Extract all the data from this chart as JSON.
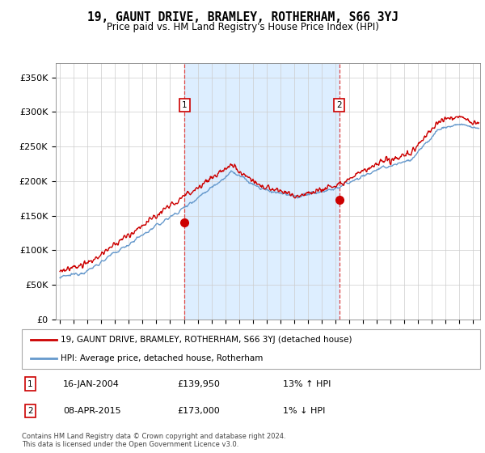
{
  "title": "19, GAUNT DRIVE, BRAMLEY, ROTHERHAM, S66 3YJ",
  "subtitle": "Price paid vs. HM Land Registry's House Price Index (HPI)",
  "ylabel_ticks": [
    "£0",
    "£50K",
    "£100K",
    "£150K",
    "£200K",
    "£250K",
    "£300K",
    "£350K"
  ],
  "ytick_values": [
    0,
    50000,
    100000,
    150000,
    200000,
    250000,
    300000,
    350000
  ],
  "ylim": [
    0,
    370000
  ],
  "xlim_start": 1994.7,
  "xlim_end": 2025.5,
  "marker1_x": 2004.04,
  "marker1_y": 139950,
  "marker2_x": 2015.27,
  "marker2_y": 173000,
  "hpi_color": "#6699cc",
  "paid_color": "#cc0000",
  "marker_box_color": "#cc0000",
  "vline_color": "#dd4444",
  "shade_color": "#ddeeff",
  "bg_color": "#ffffff",
  "grid_color": "#cccccc",
  "legend_paid_label": "19, GAUNT DRIVE, BRAMLEY, ROTHERHAM, S66 3YJ (detached house)",
  "legend_hpi_label": "HPI: Average price, detached house, Rotherham",
  "note1_date": "16-JAN-2004",
  "note1_price": "£139,950",
  "note1_hpi": "13% ↑ HPI",
  "note2_date": "08-APR-2015",
  "note2_price": "£173,000",
  "note2_hpi": "1% ↓ HPI",
  "footer": "Contains HM Land Registry data © Crown copyright and database right 2024.\nThis data is licensed under the Open Government Licence v3.0."
}
